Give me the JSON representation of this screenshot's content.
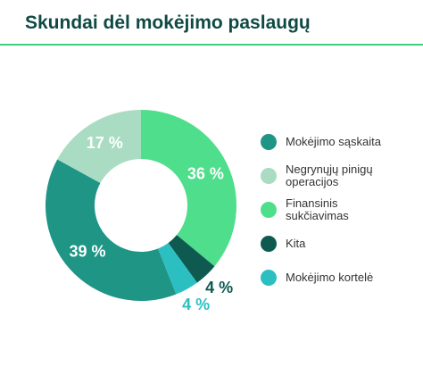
{
  "chart_data": {
    "type": "donut",
    "title": "Skundai dėl mokėjimo paslaugų",
    "series": [
      {
        "name": "Mokėjimo sąskaita",
        "color": "#1f9585",
        "values": [
          39
        ],
        "value_labels": [
          "39 %"
        ]
      },
      {
        "name": "Negrynųjų pinigų operacijos",
        "color": "#a9dcc3",
        "values": [
          17
        ],
        "value_labels": [
          "17 %"
        ]
      },
      {
        "name": "Finansinis sukčiavimas",
        "color": "#4fde8b",
        "values": [
          36
        ],
        "value_labels": [
          "36 %"
        ]
      },
      {
        "name": "Kita",
        "color": "#0e5a51",
        "values": [
          4
        ],
        "value_labels": [
          "4 %"
        ]
      },
      {
        "name": "Mokėjimo kortelė",
        "color": "#2cbfc1",
        "values": [
          4
        ],
        "value_labels": [
          "4 %"
        ]
      }
    ]
  }
}
